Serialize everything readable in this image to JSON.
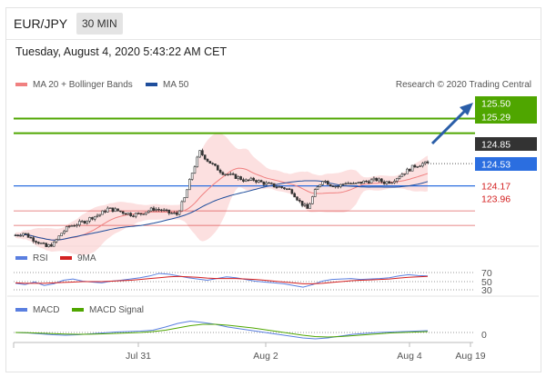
{
  "header": {
    "symbol": "EUR/JPY",
    "timeframe": "30 MIN",
    "datetime": "Tuesday, August 4, 2020 5:43:22 AM CET"
  },
  "legend": {
    "ma20": "MA 20 + Bollinger Bands",
    "ma50": "MA 50",
    "credit": "Research © 2020 Trading Central",
    "rsi": "RSI",
    "rsi_ma": "9MA",
    "macd": "MACD",
    "macd_signal": "MACD Signal"
  },
  "colors": {
    "ma20": "#f08080",
    "ma50": "#1f4e9c",
    "bollinger_fill": "#fbd5d5",
    "resistance": "#4fa600",
    "current": "#333333",
    "pivot": "#2b6ee0",
    "support": "#d42020",
    "rsi": "#5a7fe0",
    "macd": "#5a7fe0",
    "macd_signal": "#4fa600",
    "candle": "#333333"
  },
  "chart_data": [
    {
      "type": "line",
      "title": "",
      "xlabel": "",
      "ylabel": "",
      "x_ticks": [
        "Jul 31",
        "Aug 2",
        "Aug 4",
        "Aug 19"
      ],
      "ylim": [
        123.7,
        125.9
      ],
      "price_series_approx": [
        123.82,
        123.85,
        123.78,
        123.72,
        123.65,
        123.7,
        123.85,
        123.95,
        123.98,
        124.02,
        124.08,
        124.12,
        124.2,
        124.18,
        124.15,
        124.12,
        124.12,
        124.16,
        124.2,
        124.18,
        124.14,
        124.12,
        124.35,
        124.72,
        125.02,
        124.9,
        124.8,
        124.72,
        124.68,
        124.65,
        124.6,
        124.62,
        124.58,
        124.55,
        124.52,
        124.5,
        124.45,
        124.3,
        124.2,
        124.45,
        124.62,
        124.55,
        124.52,
        124.58,
        124.55,
        124.58,
        124.6,
        124.62,
        124.58,
        124.6,
        124.68,
        124.75,
        124.82,
        124.85
      ],
      "levels": [
        {
          "label": "125.50",
          "value": 125.5,
          "kind": "resistance"
        },
        {
          "label": "125.29",
          "value": 125.29,
          "kind": "resistance"
        },
        {
          "label": "124.85",
          "value": 124.85,
          "kind": "current"
        },
        {
          "label": "124.53",
          "value": 124.53,
          "kind": "pivot"
        },
        {
          "label": "124.17",
          "value": 124.17,
          "kind": "support"
        },
        {
          "label": "123.96",
          "value": 123.96,
          "kind": "support"
        }
      ],
      "series": [
        {
          "name": "MA 20 + Bollinger Bands"
        },
        {
          "name": "MA 50"
        }
      ],
      "annotation": "arrow up toward 125.50"
    },
    {
      "type": "line",
      "title": "",
      "ylim": [
        20,
        80
      ],
      "y_ticks": [
        "70",
        "50",
        "30"
      ],
      "series": [
        {
          "name": "RSI",
          "values": [
            45,
            42,
            48,
            40,
            44,
            52,
            55,
            50,
            48,
            46,
            50,
            52,
            55,
            58,
            62,
            68,
            66,
            62,
            58,
            55,
            52,
            56,
            60,
            58,
            54,
            50,
            48,
            46,
            44,
            40,
            36,
            42,
            50,
            54,
            55,
            56,
            54,
            55,
            56,
            58,
            62,
            65,
            63,
            62
          ]
        },
        {
          "name": "9MA",
          "values": [
            46,
            45,
            45,
            45,
            46,
            47,
            48,
            49,
            49,
            49,
            50,
            51,
            52,
            54,
            56,
            58,
            60,
            61,
            60,
            59,
            57,
            56,
            56,
            56,
            55,
            54,
            52,
            50,
            48,
            46,
            44,
            44,
            45,
            47,
            49,
            51,
            52,
            53,
            54,
            55,
            57,
            59,
            60,
            61
          ]
        }
      ]
    },
    {
      "type": "line",
      "title": "",
      "y_ticks": [
        "0"
      ],
      "series": [
        {
          "name": "MACD",
          "values": [
            0.0,
            -0.01,
            -0.03,
            -0.05,
            -0.06,
            -0.05,
            -0.03,
            -0.01,
            0.01,
            0.02,
            0.03,
            0.05,
            0.12,
            0.2,
            0.25,
            0.22,
            0.18,
            0.12,
            0.08,
            0.04,
            0.0,
            -0.04,
            -0.08,
            -0.12,
            -0.14,
            -0.12,
            -0.08,
            -0.04,
            -0.02,
            0.0,
            0.01,
            0.02,
            0.03,
            0.04
          ]
        },
        {
          "name": "MACD Signal",
          "values": [
            0.0,
            -0.005,
            -0.015,
            -0.025,
            -0.035,
            -0.04,
            -0.038,
            -0.03,
            -0.02,
            -0.01,
            0.0,
            0.02,
            0.05,
            0.1,
            0.15,
            0.18,
            0.18,
            0.16,
            0.13,
            0.1,
            0.06,
            0.02,
            -0.02,
            -0.06,
            -0.09,
            -0.1,
            -0.09,
            -0.07,
            -0.05,
            -0.03,
            -0.01,
            0.0,
            0.01,
            0.02
          ]
        }
      ]
    }
  ]
}
